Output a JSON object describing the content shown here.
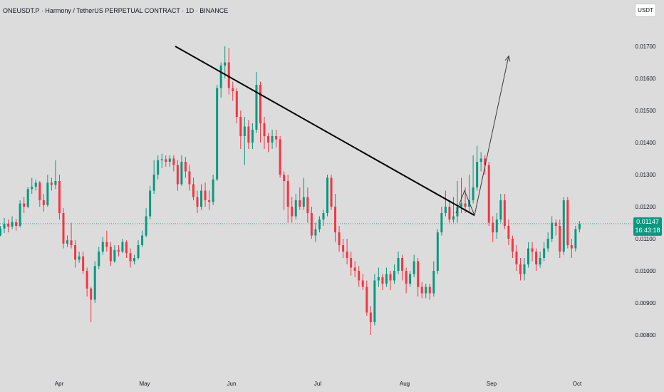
{
  "header": {
    "title": "ONEUSDT.P · Harmony / TetherUS PERPETUAL CONTRACT · 1D · BINANCE",
    "currency_button": "USDT"
  },
  "last_price": {
    "value": "0.01147",
    "countdown": "16:43:18",
    "color": "#089981"
  },
  "colors": {
    "up": "#089981",
    "down": "#f23645",
    "background": "#dcdcdc",
    "trendline": "#000000"
  },
  "chart_data": {
    "type": "candlestick",
    "ylim": [
      0.00785,
      0.01785
    ],
    "y_ticks": [
      "0.00800",
      "0.00900",
      "0.01000",
      "0.01100",
      "0.01200",
      "0.01300",
      "0.01400",
      "0.01500",
      "0.01600",
      "0.01700"
    ],
    "x_ticks": [
      "Apr",
      "May",
      "Jun",
      "Jul",
      "Aug",
      "Sep",
      "Oct"
    ],
    "candles": [
      [
        0.0111,
        0.01132,
        0.01108,
        0.0114
      ],
      [
        0.01132,
        0.01147,
        0.01118,
        0.01165
      ],
      [
        0.01147,
        0.01138,
        0.0112,
        0.0116
      ],
      [
        0.01138,
        0.01152,
        0.0113,
        0.0117
      ],
      [
        0.01152,
        0.0114,
        0.01125,
        0.01162
      ],
      [
        0.0114,
        0.0121,
        0.01135,
        0.0122
      ],
      [
        0.0121,
        0.012,
        0.0118,
        0.0123
      ],
      [
        0.012,
        0.01255,
        0.01195,
        0.01262
      ],
      [
        0.01255,
        0.01262,
        0.0124,
        0.0129
      ],
      [
        0.01262,
        0.01275,
        0.0125,
        0.01285
      ],
      [
        0.01275,
        0.0122,
        0.012,
        0.0128
      ],
      [
        0.0122,
        0.01205,
        0.01185,
        0.0124
      ],
      [
        0.01205,
        0.01275,
        0.012,
        0.013
      ],
      [
        0.01275,
        0.01268,
        0.0125,
        0.0129
      ],
      [
        0.01268,
        0.0128,
        0.01255,
        0.01345
      ],
      [
        0.0128,
        0.0118,
        0.0116,
        0.013
      ],
      [
        0.0118,
        0.01085,
        0.0107,
        0.01195
      ],
      [
        0.01085,
        0.01095,
        0.01075,
        0.0111
      ],
      [
        0.01095,
        0.0108,
        0.0107,
        0.0115
      ],
      [
        0.0108,
        0.01035,
        0.0101,
        0.01095
      ],
      [
        0.01035,
        0.01045,
        0.01025,
        0.0106
      ],
      [
        0.01045,
        0.01,
        0.0099,
        0.0106
      ],
      [
        0.01,
        0.00945,
        0.0092,
        0.0101
      ],
      [
        0.00945,
        0.0091,
        0.0084,
        0.0095
      ],
      [
        0.0091,
        0.01015,
        0.009,
        0.0103
      ],
      [
        0.01015,
        0.0106,
        0.01005,
        0.01075
      ],
      [
        0.0106,
        0.0109,
        0.0105,
        0.01105
      ],
      [
        0.0109,
        0.01075,
        0.0106,
        0.01125
      ],
      [
        0.01075,
        0.0103,
        0.01015,
        0.0109
      ],
      [
        0.0103,
        0.01065,
        0.01025,
        0.0108
      ],
      [
        0.01065,
        0.0106,
        0.01045,
        0.0108
      ],
      [
        0.0106,
        0.0109,
        0.01055,
        0.011
      ],
      [
        0.0109,
        0.01055,
        0.0104,
        0.01095
      ],
      [
        0.01055,
        0.0103,
        0.0101,
        0.0107
      ],
      [
        0.0103,
        0.0104,
        0.0102,
        0.0105
      ],
      [
        0.0104,
        0.0108,
        0.01035,
        0.01095
      ],
      [
        0.0108,
        0.0111,
        0.01075,
        0.01125
      ],
      [
        0.0111,
        0.0117,
        0.01105,
        0.01195
      ],
      [
        0.0117,
        0.0125,
        0.0116,
        0.01265
      ],
      [
        0.0125,
        0.013,
        0.0124,
        0.01345
      ],
      [
        0.013,
        0.01345,
        0.01285,
        0.0136
      ],
      [
        0.01345,
        0.01348,
        0.0132,
        0.01365
      ],
      [
        0.01348,
        0.0134,
        0.01325,
        0.0136
      ],
      [
        0.0134,
        0.0135,
        0.01325,
        0.0136
      ],
      [
        0.0135,
        0.0133,
        0.0131,
        0.0136
      ],
      [
        0.0133,
        0.0127,
        0.0125,
        0.01345
      ],
      [
        0.0127,
        0.0134,
        0.01265,
        0.0136
      ],
      [
        0.0134,
        0.0131,
        0.0129,
        0.01355
      ],
      [
        0.0131,
        0.0127,
        0.0125,
        0.0133
      ],
      [
        0.0127,
        0.0123,
        0.0122,
        0.0129
      ],
      [
        0.0123,
        0.012,
        0.0118,
        0.0125
      ],
      [
        0.012,
        0.0125,
        0.0119,
        0.0127
      ],
      [
        0.0125,
        0.0122,
        0.012,
        0.01275
      ],
      [
        0.0122,
        0.01215,
        0.0119,
        0.0125
      ],
      [
        0.01215,
        0.01285,
        0.01205,
        0.013
      ],
      [
        0.01285,
        0.0157,
        0.0128,
        0.0158
      ],
      [
        0.0157,
        0.0164,
        0.0154,
        0.0165
      ],
      [
        0.0164,
        0.0165,
        0.016,
        0.017
      ],
      [
        0.0165,
        0.0157,
        0.0155,
        0.01695
      ],
      [
        0.0157,
        0.0156,
        0.0153,
        0.0159
      ],
      [
        0.0156,
        0.0148,
        0.0146,
        0.0157
      ],
      [
        0.0148,
        0.0142,
        0.0138,
        0.015
      ],
      [
        0.0142,
        0.0145,
        0.0133,
        0.0148
      ],
      [
        0.0145,
        0.014,
        0.0138,
        0.0147
      ],
      [
        0.014,
        0.0144,
        0.0138,
        0.0146
      ],
      [
        0.0144,
        0.0158,
        0.0143,
        0.0162
      ],
      [
        0.0158,
        0.0146,
        0.014,
        0.0159
      ],
      [
        0.0146,
        0.0142,
        0.0138,
        0.0148
      ],
      [
        0.0142,
        0.014,
        0.0137,
        0.0143
      ],
      [
        0.014,
        0.0142,
        0.0138,
        0.0144
      ],
      [
        0.0142,
        0.0141,
        0.01385,
        0.0144
      ],
      [
        0.0141,
        0.013,
        0.0129,
        0.0142
      ],
      [
        0.013,
        0.0128,
        0.0119,
        0.0131
      ],
      [
        0.0128,
        0.012,
        0.0115,
        0.013
      ],
      [
        0.012,
        0.0117,
        0.0115,
        0.0123
      ],
      [
        0.0117,
        0.0122,
        0.0116,
        0.0124
      ],
      [
        0.0122,
        0.012,
        0.0119,
        0.0126
      ],
      [
        0.012,
        0.0123,
        0.0119,
        0.0129
      ],
      [
        0.0123,
        0.0118,
        0.0115,
        0.0126
      ],
      [
        0.0118,
        0.0111,
        0.011,
        0.012
      ],
      [
        0.0111,
        0.0113,
        0.0109,
        0.0115
      ],
      [
        0.0113,
        0.0116,
        0.0112,
        0.0117
      ],
      [
        0.0116,
        0.0118,
        0.0114,
        0.0119
      ],
      [
        0.0118,
        0.0129,
        0.0117,
        0.013
      ],
      [
        0.0129,
        0.012,
        0.0119,
        0.013
      ],
      [
        0.012,
        0.0112,
        0.0109,
        0.0124
      ],
      [
        0.0112,
        0.0108,
        0.0106,
        0.0114
      ],
      [
        0.0108,
        0.0106,
        0.0104,
        0.011
      ],
      [
        0.0106,
        0.0104,
        0.0102,
        0.011
      ],
      [
        0.0104,
        0.0101,
        0.00985,
        0.0106
      ],
      [
        0.0101,
        0.01,
        0.0098,
        0.0103
      ],
      [
        0.01,
        0.0097,
        0.0095,
        0.01015
      ],
      [
        0.0097,
        0.0095,
        0.0094,
        0.0099
      ],
      [
        0.0095,
        0.0087,
        0.0086,
        0.0097
      ],
      [
        0.0087,
        0.0084,
        0.008,
        0.0089
      ],
      [
        0.0084,
        0.0097,
        0.0083,
        0.0099
      ],
      [
        0.0097,
        0.0098,
        0.0095,
        0.0101
      ],
      [
        0.0098,
        0.0096,
        0.0094,
        0.0099
      ],
      [
        0.0096,
        0.0099,
        0.0095,
        0.0101
      ],
      [
        0.0099,
        0.0097,
        0.0094,
        0.01
      ],
      [
        0.0097,
        0.01,
        0.0096,
        0.0102
      ],
      [
        0.01,
        0.0104,
        0.0099,
        0.0106
      ],
      [
        0.0104,
        0.01,
        0.0097,
        0.0105
      ],
      [
        0.01,
        0.0096,
        0.0093,
        0.0101
      ],
      [
        0.0096,
        0.0099,
        0.0095,
        0.01
      ],
      [
        0.0099,
        0.0103,
        0.0098,
        0.0105
      ],
      [
        0.0103,
        0.0095,
        0.0092,
        0.0104
      ],
      [
        0.0095,
        0.0093,
        0.00915,
        0.00965
      ],
      [
        0.0093,
        0.0095,
        0.00915,
        0.0096
      ],
      [
        0.0095,
        0.0093,
        0.0091,
        0.0096
      ],
      [
        0.0093,
        0.01,
        0.0092,
        0.0103
      ],
      [
        0.01,
        0.0112,
        0.0099,
        0.0113
      ],
      [
        0.0112,
        0.0118,
        0.0111,
        0.012
      ],
      [
        0.0118,
        0.012,
        0.0117,
        0.0125
      ],
      [
        0.012,
        0.0116,
        0.0115,
        0.0122
      ],
      [
        0.0116,
        0.0117,
        0.0115,
        0.0123
      ],
      [
        0.0117,
        0.012,
        0.0115,
        0.0128
      ],
      [
        0.012,
        0.0121,
        0.0118,
        0.0129
      ],
      [
        0.0121,
        0.012,
        0.0118,
        0.0126
      ],
      [
        0.012,
        0.0122,
        0.0118,
        0.013
      ],
      [
        0.0122,
        0.0126,
        0.0121,
        0.0136
      ],
      [
        0.0126,
        0.0134,
        0.0125,
        0.0139
      ],
      [
        0.0134,
        0.0135,
        0.0131,
        0.0137
      ],
      [
        0.0135,
        0.0133,
        0.013,
        0.0136
      ],
      [
        0.0133,
        0.0115,
        0.0114,
        0.0134
      ],
      [
        0.0115,
        0.0112,
        0.0109,
        0.0117
      ],
      [
        0.0112,
        0.0116,
        0.011,
        0.0118
      ],
      [
        0.0116,
        0.0122,
        0.0115,
        0.0124
      ],
      [
        0.0122,
        0.0114,
        0.0113,
        0.0124
      ],
      [
        0.0114,
        0.011,
        0.0108,
        0.0116
      ],
      [
        0.011,
        0.0106,
        0.0104,
        0.0111
      ],
      [
        0.0106,
        0.0102,
        0.01,
        0.0108
      ],
      [
        0.0102,
        0.0099,
        0.0097,
        0.0104
      ],
      [
        0.0099,
        0.0102,
        0.0097,
        0.0104
      ],
      [
        0.0102,
        0.0107,
        0.0101,
        0.0109
      ],
      [
        0.0107,
        0.0106,
        0.0103,
        0.0109
      ],
      [
        0.0106,
        0.0102,
        0.01,
        0.0107
      ],
      [
        0.0102,
        0.0104,
        0.0101,
        0.0106
      ],
      [
        0.0104,
        0.0107,
        0.0103,
        0.0109
      ],
      [
        0.0107,
        0.011,
        0.0106,
        0.0112
      ],
      [
        0.011,
        0.0115,
        0.0109,
        0.0117
      ],
      [
        0.0115,
        0.0114,
        0.0111,
        0.0116
      ],
      [
        0.0114,
        0.0106,
        0.0104,
        0.0116
      ],
      [
        0.0106,
        0.0122,
        0.0105,
        0.0123
      ],
      [
        0.0122,
        0.0108,
        0.0107,
        0.0123
      ],
      [
        0.0108,
        0.0107,
        0.0104,
        0.011
      ],
      [
        0.0107,
        0.0113,
        0.0106,
        0.0114
      ],
      [
        0.0113,
        0.01147,
        0.0112,
        0.01155
      ]
    ],
    "x_start": 0.5,
    "x_step": 5.53
  },
  "annotations": {
    "trendline": [
      [
        246,
        0.017
      ],
      [
        666,
        0.01173
      ]
    ],
    "projection_path": [
      [
        640,
        0.0118
      ],
      [
        652,
        0.0125
      ],
      [
        666,
        0.01173
      ],
      [
        714,
        0.0167
      ]
    ]
  }
}
